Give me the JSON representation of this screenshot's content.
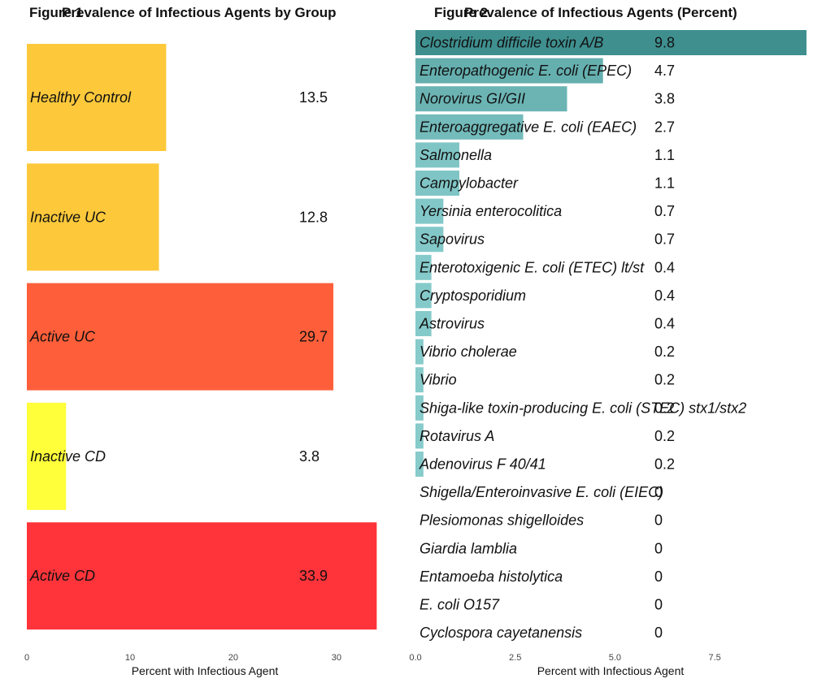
{
  "chart_data": [
    {
      "type": "bar",
      "orientation": "horizontal",
      "figure_label": "Figure 1",
      "title": "Prevalence of Infectious Agents by Group",
      "xlabel": "Percent with Infectious Agent",
      "ylabel": "",
      "xlim": [
        0,
        34.5
      ],
      "x_ticks": [
        0,
        10,
        20,
        30
      ],
      "grid": false,
      "categories": [
        "Healthy Control",
        "Inactive UC",
        "Active UC",
        "Inactive CD",
        "Active CD"
      ],
      "values": [
        13.5,
        12.8,
        29.7,
        3.8,
        33.9
      ],
      "value_labels": [
        "13.5",
        "12.8",
        "29.7",
        "3.8",
        "33.9"
      ],
      "colors": [
        "#FDC93B",
        "#FDC93B",
        "#FE5F3A",
        "#FFFF3A",
        "#FF343A"
      ]
    },
    {
      "type": "bar",
      "orientation": "horizontal",
      "figure_label": "Figure 2",
      "title": "Prevalence of Infectious Agents (Percent)",
      "xlabel": "Percent with Infectious Agent",
      "ylabel": "",
      "xlim": [
        0,
        9.8
      ],
      "x_ticks": [
        0.0,
        2.5,
        5.0,
        7.5
      ],
      "x_tick_labels": [
        "0.0",
        "2.5",
        "5.0",
        "7.5"
      ],
      "grid": false,
      "categories": [
        "Clostridium difficile toxin A/B",
        "Enteropathogenic E. coli (EPEC)",
        "Norovirus GI/GII",
        "Enteroaggregative E. coli (EAEC)",
        "Salmonella",
        "Campylobacter",
        "Yersinia enterocolitica",
        "Sapovirus",
        "Enterotoxigenic E. coli (ETEC) lt/st",
        "Cryptosporidium",
        "Astrovirus",
        "Vibrio cholerae",
        "Vibrio",
        "Shiga-like toxin-producing E. coli (STEC) stx1/stx2",
        "Rotavirus A",
        "Adenovirus F 40/41",
        "Shigella/Enteroinvasive E. coli (EIEC)",
        "Plesiomonas shigelloides",
        "Giardia lamblia",
        "Entamoeba histolytica",
        "E. coli O157",
        "Cyclospora cayetanensis"
      ],
      "values": [
        9.8,
        4.7,
        3.8,
        2.7,
        1.1,
        1.1,
        0.7,
        0.7,
        0.4,
        0.4,
        0.4,
        0.2,
        0.2,
        0.2,
        0.2,
        0.2,
        0,
        0,
        0,
        0,
        0,
        0
      ],
      "value_labels": [
        "9.8",
        "4.7",
        "3.8",
        "2.7",
        "1.1",
        "1.1",
        "0.7",
        "0.7",
        "0.4",
        "0.4",
        "0.4",
        "0.2",
        "0.2",
        "0.2",
        "0.2",
        "0.2",
        "0",
        "0",
        "0",
        "0",
        "0",
        "0"
      ],
      "color_scale": [
        "#88CCCC",
        "#3F8F8F"
      ]
    }
  ]
}
